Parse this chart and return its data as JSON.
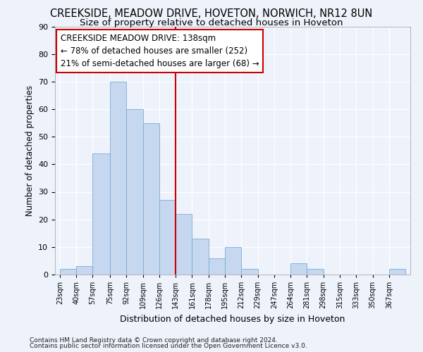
{
  "title": "CREEKSIDE, MEADOW DRIVE, HOVETON, NORWICH, NR12 8UN",
  "subtitle": "Size of property relative to detached houses in Hoveton",
  "xlabel": "Distribution of detached houses by size in Hoveton",
  "ylabel": "Number of detached properties",
  "footnote1": "Contains HM Land Registry data © Crown copyright and database right 2024.",
  "footnote2": "Contains public sector information licensed under the Open Government Licence v3.0.",
  "annotation_line1": "CREEKSIDE MEADOW DRIVE: 138sqm",
  "annotation_line2": "← 78% of detached houses are smaller (252)",
  "annotation_line3": "21% of semi-detached houses are larger (68) →",
  "bar_color": "#c5d8f0",
  "bar_edge_color": "#7aabd4",
  "vline_color": "#cc0000",
  "vline_x": 143,
  "categories": [
    "23sqm",
    "40sqm",
    "57sqm",
    "75sqm",
    "92sqm",
    "109sqm",
    "126sqm",
    "143sqm",
    "161sqm",
    "178sqm",
    "195sqm",
    "212sqm",
    "229sqm",
    "247sqm",
    "264sqm",
    "281sqm",
    "298sqm",
    "315sqm",
    "333sqm",
    "350sqm",
    "367sqm"
  ],
  "bin_edges": [
    23,
    40,
    57,
    75,
    92,
    109,
    126,
    143,
    160,
    177,
    194,
    211,
    228,
    245,
    262,
    279,
    296,
    313,
    330,
    347,
    364,
    381
  ],
  "values": [
    2,
    3,
    44,
    70,
    60,
    55,
    27,
    22,
    13,
    6,
    10,
    2,
    0,
    0,
    4,
    2,
    0,
    0,
    0,
    0,
    2
  ],
  "ylim": [
    0,
    90
  ],
  "yticks": [
    0,
    10,
    20,
    30,
    40,
    50,
    60,
    70,
    80,
    90
  ],
  "background_color": "#eef2fb",
  "grid_color": "#ffffff",
  "title_fontsize": 10.5,
  "subtitle_fontsize": 9.5,
  "annot_fontsize": 8.5
}
